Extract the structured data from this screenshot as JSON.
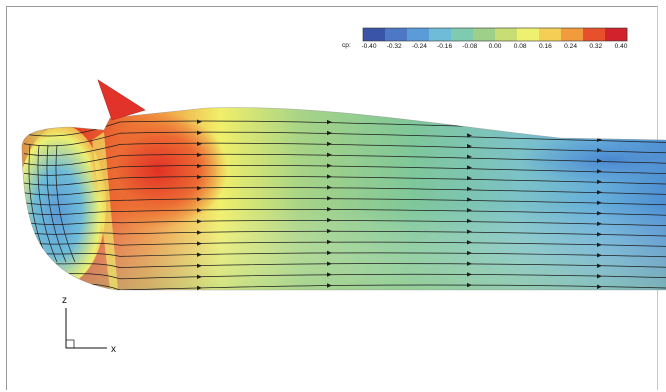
{
  "colorbar": {
    "variable": "cp:",
    "ticks": [
      "-0.40",
      "-0.32",
      "-0.24",
      "-0.16",
      "-0.08",
      "0.00",
      "0.08",
      "0.16",
      "0.24",
      "0.32",
      "0.40"
    ],
    "range": [
      -0.4,
      0.4
    ],
    "colors": [
      "#3a55a8",
      "#4d78c6",
      "#5b9bd8",
      "#6fbcd8",
      "#7fcbb0",
      "#9fd08a",
      "#c8de74",
      "#eef070",
      "#f5cf55",
      "#f29a3e",
      "#e8502b",
      "#d2222b"
    ]
  },
  "axes": {
    "vertical": "z",
    "horizontal": "x"
  }
}
